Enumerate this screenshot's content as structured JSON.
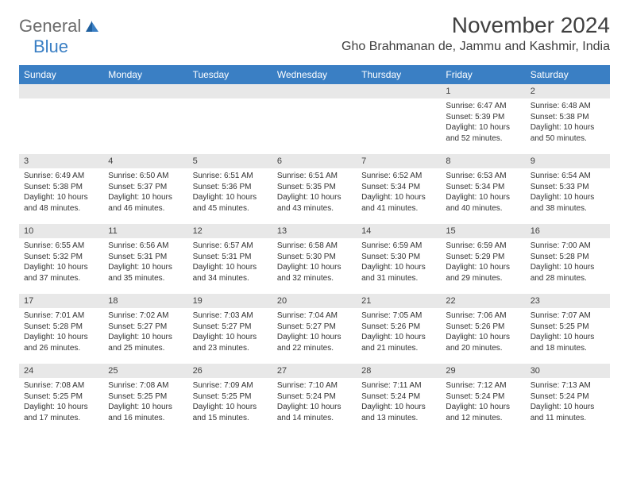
{
  "logo": {
    "text1": "General",
    "text2": "Blue"
  },
  "title": "November 2024",
  "location": "Gho Brahmanan de, Jammu and Kashmir, India",
  "colors": {
    "header_bg": "#3a7fc4",
    "header_fg": "#ffffff",
    "daynum_bg": "#e8e8e8",
    "text": "#333333",
    "logo_gray": "#6b6b6b",
    "logo_blue": "#3a7fc4",
    "page_bg": "#ffffff"
  },
  "weekdays": [
    "Sunday",
    "Monday",
    "Tuesday",
    "Wednesday",
    "Thursday",
    "Friday",
    "Saturday"
  ],
  "weeks": [
    [
      null,
      null,
      null,
      null,
      null,
      {
        "n": "1",
        "sr": "6:47 AM",
        "ss": "5:39 PM",
        "dl": "10 hours and 52 minutes."
      },
      {
        "n": "2",
        "sr": "6:48 AM",
        "ss": "5:38 PM",
        "dl": "10 hours and 50 minutes."
      }
    ],
    [
      {
        "n": "3",
        "sr": "6:49 AM",
        "ss": "5:38 PM",
        "dl": "10 hours and 48 minutes."
      },
      {
        "n": "4",
        "sr": "6:50 AM",
        "ss": "5:37 PM",
        "dl": "10 hours and 46 minutes."
      },
      {
        "n": "5",
        "sr": "6:51 AM",
        "ss": "5:36 PM",
        "dl": "10 hours and 45 minutes."
      },
      {
        "n": "6",
        "sr": "6:51 AM",
        "ss": "5:35 PM",
        "dl": "10 hours and 43 minutes."
      },
      {
        "n": "7",
        "sr": "6:52 AM",
        "ss": "5:34 PM",
        "dl": "10 hours and 41 minutes."
      },
      {
        "n": "8",
        "sr": "6:53 AM",
        "ss": "5:34 PM",
        "dl": "10 hours and 40 minutes."
      },
      {
        "n": "9",
        "sr": "6:54 AM",
        "ss": "5:33 PM",
        "dl": "10 hours and 38 minutes."
      }
    ],
    [
      {
        "n": "10",
        "sr": "6:55 AM",
        "ss": "5:32 PM",
        "dl": "10 hours and 37 minutes."
      },
      {
        "n": "11",
        "sr": "6:56 AM",
        "ss": "5:31 PM",
        "dl": "10 hours and 35 minutes."
      },
      {
        "n": "12",
        "sr": "6:57 AM",
        "ss": "5:31 PM",
        "dl": "10 hours and 34 minutes."
      },
      {
        "n": "13",
        "sr": "6:58 AM",
        "ss": "5:30 PM",
        "dl": "10 hours and 32 minutes."
      },
      {
        "n": "14",
        "sr": "6:59 AM",
        "ss": "5:30 PM",
        "dl": "10 hours and 31 minutes."
      },
      {
        "n": "15",
        "sr": "6:59 AM",
        "ss": "5:29 PM",
        "dl": "10 hours and 29 minutes."
      },
      {
        "n": "16",
        "sr": "7:00 AM",
        "ss": "5:28 PM",
        "dl": "10 hours and 28 minutes."
      }
    ],
    [
      {
        "n": "17",
        "sr": "7:01 AM",
        "ss": "5:28 PM",
        "dl": "10 hours and 26 minutes."
      },
      {
        "n": "18",
        "sr": "7:02 AM",
        "ss": "5:27 PM",
        "dl": "10 hours and 25 minutes."
      },
      {
        "n": "19",
        "sr": "7:03 AM",
        "ss": "5:27 PM",
        "dl": "10 hours and 23 minutes."
      },
      {
        "n": "20",
        "sr": "7:04 AM",
        "ss": "5:27 PM",
        "dl": "10 hours and 22 minutes."
      },
      {
        "n": "21",
        "sr": "7:05 AM",
        "ss": "5:26 PM",
        "dl": "10 hours and 21 minutes."
      },
      {
        "n": "22",
        "sr": "7:06 AM",
        "ss": "5:26 PM",
        "dl": "10 hours and 20 minutes."
      },
      {
        "n": "23",
        "sr": "7:07 AM",
        "ss": "5:25 PM",
        "dl": "10 hours and 18 minutes."
      }
    ],
    [
      {
        "n": "24",
        "sr": "7:08 AM",
        "ss": "5:25 PM",
        "dl": "10 hours and 17 minutes."
      },
      {
        "n": "25",
        "sr": "7:08 AM",
        "ss": "5:25 PM",
        "dl": "10 hours and 16 minutes."
      },
      {
        "n": "26",
        "sr": "7:09 AM",
        "ss": "5:25 PM",
        "dl": "10 hours and 15 minutes."
      },
      {
        "n": "27",
        "sr": "7:10 AM",
        "ss": "5:24 PM",
        "dl": "10 hours and 14 minutes."
      },
      {
        "n": "28",
        "sr": "7:11 AM",
        "ss": "5:24 PM",
        "dl": "10 hours and 13 minutes."
      },
      {
        "n": "29",
        "sr": "7:12 AM",
        "ss": "5:24 PM",
        "dl": "10 hours and 12 minutes."
      },
      {
        "n": "30",
        "sr": "7:13 AM",
        "ss": "5:24 PM",
        "dl": "10 hours and 11 minutes."
      }
    ]
  ],
  "labels": {
    "sunrise": "Sunrise:",
    "sunset": "Sunset:",
    "daylight": "Daylight:"
  }
}
